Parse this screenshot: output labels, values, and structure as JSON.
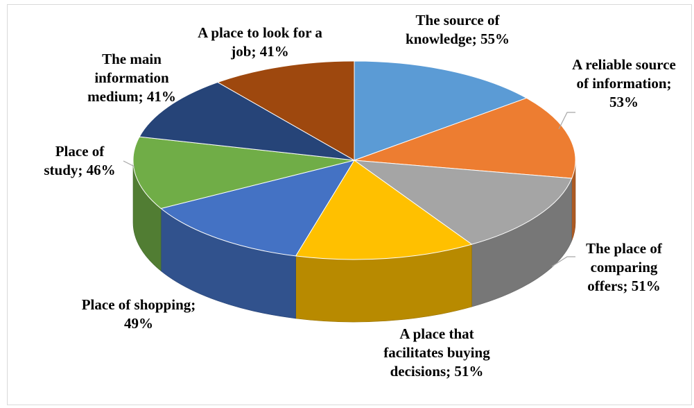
{
  "chart_data": {
    "type": "pie3d",
    "values": [
      55,
      53,
      51,
      51,
      49,
      46,
      41,
      41
    ],
    "value_labels": [
      "The source of knowledge; 55%",
      "A reliable source of information; 53%",
      "The place of comparing offers; 51%",
      "A place that facilitates buying decisions; 51%",
      "Place of shopping; 49%",
      "Place of study; 46%",
      "The main information medium; 41%",
      "A place to look for a job; 41%"
    ],
    "colors": [
      "#5b9bd5",
      "#ed7d31",
      "#a5a5a5",
      "#ffc000",
      "#4472c4",
      "#70ad47",
      "#264478",
      "#9e480e"
    ]
  }
}
